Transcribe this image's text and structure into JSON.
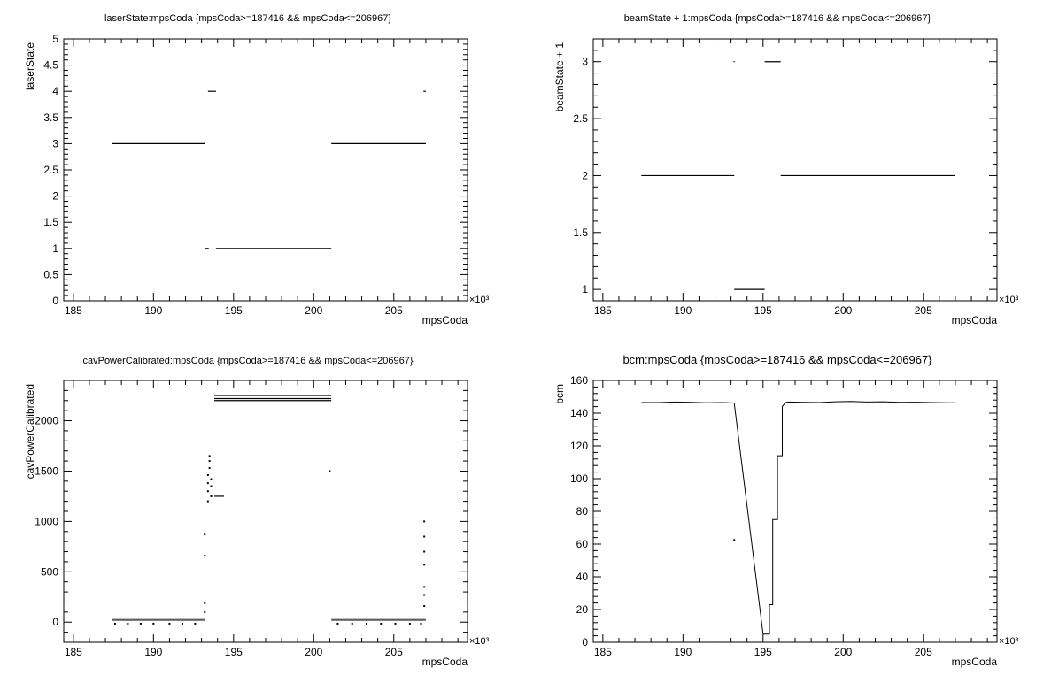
{
  "chart_data": [
    {
      "type": "scatter",
      "title": "laserState:mpsCoda {mpsCoda>=187416 && mpsCoda<=206967}",
      "xlabel": "mpsCoda",
      "ylabel": "laserState",
      "x_exponent": "×10³",
      "xlim": [
        184.4,
        209.6
      ],
      "ylim": [
        0,
        5
      ],
      "x_ticks": [
        "185",
        "190",
        "195",
        "200",
        "205"
      ],
      "y_ticks": [
        "0",
        "0.5",
        "1",
        "1.5",
        "2",
        "2.5",
        "3",
        "3.5",
        "4",
        "4.5",
        "5"
      ],
      "segments": [
        {
          "x": [
            187.4,
            193.2
          ],
          "y": 3
        },
        {
          "x": [
            193.2,
            193.45
          ],
          "y": 1
        },
        {
          "x": [
            193.4,
            193.9
          ],
          "y": 4
        },
        {
          "x": [
            193.9,
            201.1
          ],
          "y": 1
        },
        {
          "x": [
            201.1,
            207.0
          ],
          "y": 3
        },
        {
          "x": [
            206.85,
            207.0
          ],
          "y": 4
        }
      ]
    },
    {
      "type": "scatter",
      "title": "beamState + 1:mpsCoda {mpsCoda>=187416 && mpsCoda<=206967}",
      "xlabel": "mpsCoda",
      "ylabel": "beamState + 1",
      "x_exponent": "×10³",
      "xlim": [
        184.4,
        209.6
      ],
      "ylim": [
        0.9,
        3.2
      ],
      "x_ticks": [
        "185",
        "190",
        "195",
        "200",
        "205"
      ],
      "y_ticks": [
        "1",
        "1.5",
        "2",
        "2.5",
        "3"
      ],
      "segments": [
        {
          "x": [
            187.4,
            193.2
          ],
          "y": 2
        },
        {
          "x": [
            193.2,
            195.1
          ],
          "y": 1
        },
        {
          "x": [
            193.15,
            193.22
          ],
          "y": 3
        },
        {
          "x": [
            195.1,
            196.1
          ],
          "y": 3
        },
        {
          "x": [
            196.1,
            207.0
          ],
          "y": 2
        }
      ]
    },
    {
      "type": "scatter",
      "title": "cavPowerCalibrated:mpsCoda {mpsCoda>=187416 && mpsCoda<=206967}",
      "xlabel": "mpsCoda",
      "ylabel": "cavPowerCalibrated",
      "x_exponent": "×10³",
      "xlim": [
        184.4,
        209.6
      ],
      "ylim": [
        -200,
        2400
      ],
      "x_ticks": [
        "185",
        "190",
        "195",
        "200",
        "205"
      ],
      "y_ticks": [
        "0",
        "500",
        "1000",
        "1500",
        "2000"
      ],
      "segments": [
        {
          "x": [
            187.4,
            193.2
          ],
          "y": 40
        },
        {
          "x": [
            187.4,
            193.2
          ],
          "y": 20
        },
        {
          "x": [
            193.8,
            201.1
          ],
          "y": 2250
        },
        {
          "x": [
            193.8,
            201.1
          ],
          "y": 2220
        },
        {
          "x": [
            193.8,
            201.1
          ],
          "y": 2200
        },
        {
          "x": [
            193.8,
            194.4
          ],
          "y": 1250
        },
        {
          "x": [
            201.1,
            207.0
          ],
          "y": 40
        },
        {
          "x": [
            201.1,
            207.0
          ],
          "y": 20
        }
      ],
      "points": [
        [
          187.6,
          -15
        ],
        [
          188.4,
          -15
        ],
        [
          189.2,
          -15
        ],
        [
          190.0,
          -15
        ],
        [
          191.0,
          -15
        ],
        [
          191.8,
          -15
        ],
        [
          192.6,
          -15
        ],
        [
          193.2,
          190
        ],
        [
          193.2,
          100
        ],
        [
          193.2,
          660
        ],
        [
          193.2,
          870
        ],
        [
          193.4,
          1200
        ],
        [
          193.4,
          1300
        ],
        [
          193.4,
          1380
        ],
        [
          193.4,
          1460
        ],
        [
          193.5,
          1530
        ],
        [
          193.5,
          1600
        ],
        [
          193.5,
          1650
        ],
        [
          193.6,
          1250
        ],
        [
          193.6,
          1350
        ],
        [
          193.6,
          1420
        ],
        [
          201.0,
          1500
        ],
        [
          201.5,
          -15
        ],
        [
          202.4,
          -15
        ],
        [
          203.3,
          -15
        ],
        [
          204.2,
          -15
        ],
        [
          205.1,
          -15
        ],
        [
          206.0,
          -15
        ],
        [
          206.7,
          -15
        ],
        [
          206.9,
          1000
        ],
        [
          206.9,
          850
        ],
        [
          206.9,
          700
        ],
        [
          206.9,
          570
        ],
        [
          206.9,
          350
        ],
        [
          206.9,
          270
        ],
        [
          206.9,
          160
        ]
      ]
    },
    {
      "type": "line",
      "title": "bcm:mpsCoda {mpsCoda>=187416 && mpsCoda<=206967}",
      "xlabel": "mpsCoda",
      "ylabel": "bcm",
      "x_exponent": "×10³",
      "xlim": [
        184.4,
        209.6
      ],
      "ylim": [
        0,
        160
      ],
      "x_ticks": [
        "185",
        "190",
        "195",
        "200",
        "205"
      ],
      "y_ticks": [
        "0",
        "20",
        "40",
        "60",
        "80",
        "100",
        "120",
        "140",
        "160"
      ],
      "series": [
        {
          "x": [
            187.4,
            188.5,
            189.5,
            190.5,
            191.5,
            192.5,
            193.2,
            195.0,
            195.4,
            195.4,
            195.6,
            195.6,
            195.9,
            195.9,
            196.2,
            196.2,
            196.4,
            196.6,
            197.5,
            198.5,
            199.5,
            200.5,
            201.5,
            202.5,
            203.5,
            204.5,
            205.5,
            206.5,
            207.0
          ],
          "y": [
            146.5,
            146.5,
            146.8,
            146.6,
            146.4,
            146.5,
            146.2,
            5,
            5,
            23,
            23,
            75,
            75,
            114,
            114,
            144,
            146.5,
            146.8,
            146.6,
            146.5,
            147.0,
            147.2,
            146.8,
            147.0,
            146.6,
            146.7,
            146.5,
            146.4,
            146.4
          ]
        }
      ],
      "points": [
        [
          193.2,
          62.5
        ]
      ]
    }
  ]
}
